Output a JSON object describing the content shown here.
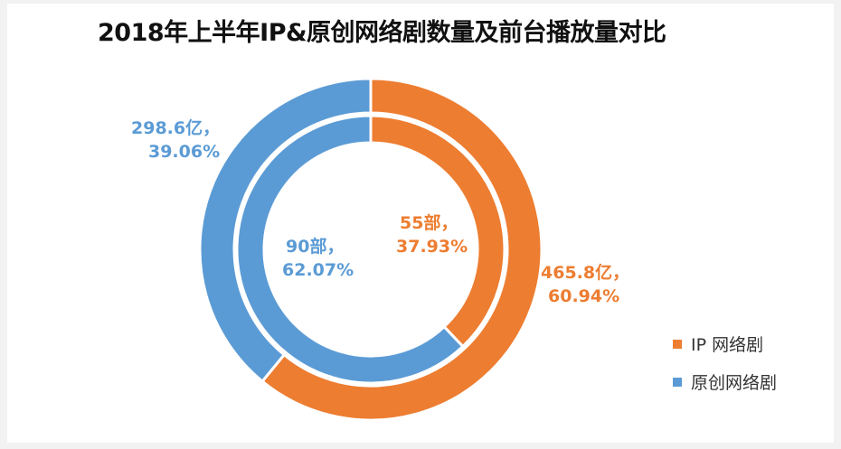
{
  "chart_data": {
    "type": "doughnut",
    "title": "2018年上半年IP&原创网络剧数量及前台播放量对比",
    "legend_position": "right",
    "series_colors": {
      "IP 网络剧": "#ED7D31",
      "原创网络剧": "#5B9BD5"
    },
    "legend": [
      "IP 网络剧",
      "原创网络剧"
    ],
    "rings": [
      {
        "ring": "inner",
        "slices": [
          {
            "name": "IP 网络剧",
            "value": 55,
            "percent": 37.93,
            "label_line1": "55部，",
            "label_line2": "37.93%"
          },
          {
            "name": "原创网络剧",
            "value": 90,
            "percent": 62.07,
            "label_line1": "90部，",
            "label_line2": "62.07%"
          }
        ]
      },
      {
        "ring": "outer",
        "slices": [
          {
            "name": "IP 网络剧",
            "value": 465.8,
            "percent": 60.94,
            "label_line1": "465.8亿，",
            "label_line2": "60.94%"
          },
          {
            "name": "原创网络剧",
            "value": 298.6,
            "percent": 39.06,
            "label_line1": "298.6亿，",
            "label_line2": "39.06%"
          }
        ]
      }
    ]
  }
}
